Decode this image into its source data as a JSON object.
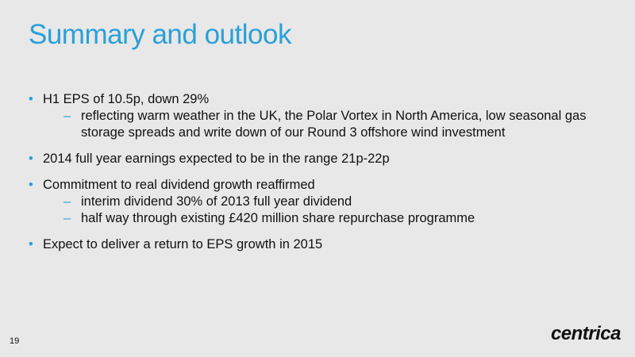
{
  "header": {
    "title": "Summary and outlook"
  },
  "bullets": [
    {
      "text": "H1 EPS of 10.5p, down 29%",
      "sub": [
        "reflecting warm weather in the UK, the Polar Vortex in North America, low seasonal gas storage spreads and write down of our Round 3 offshore wind investment"
      ]
    },
    {
      "text": "2014 full year earnings expected to be in the range 21p-22p",
      "sub": []
    },
    {
      "text": "Commitment to real dividend growth reaffirmed",
      "sub": [
        "interim dividend 30% of 2013 full year dividend",
        "half way through existing £420 million share repurchase programme"
      ]
    },
    {
      "text": "Expect to deliver a return to EPS growth in 2015",
      "sub": []
    }
  ],
  "footer": {
    "page": "19",
    "logo": "centrica"
  }
}
